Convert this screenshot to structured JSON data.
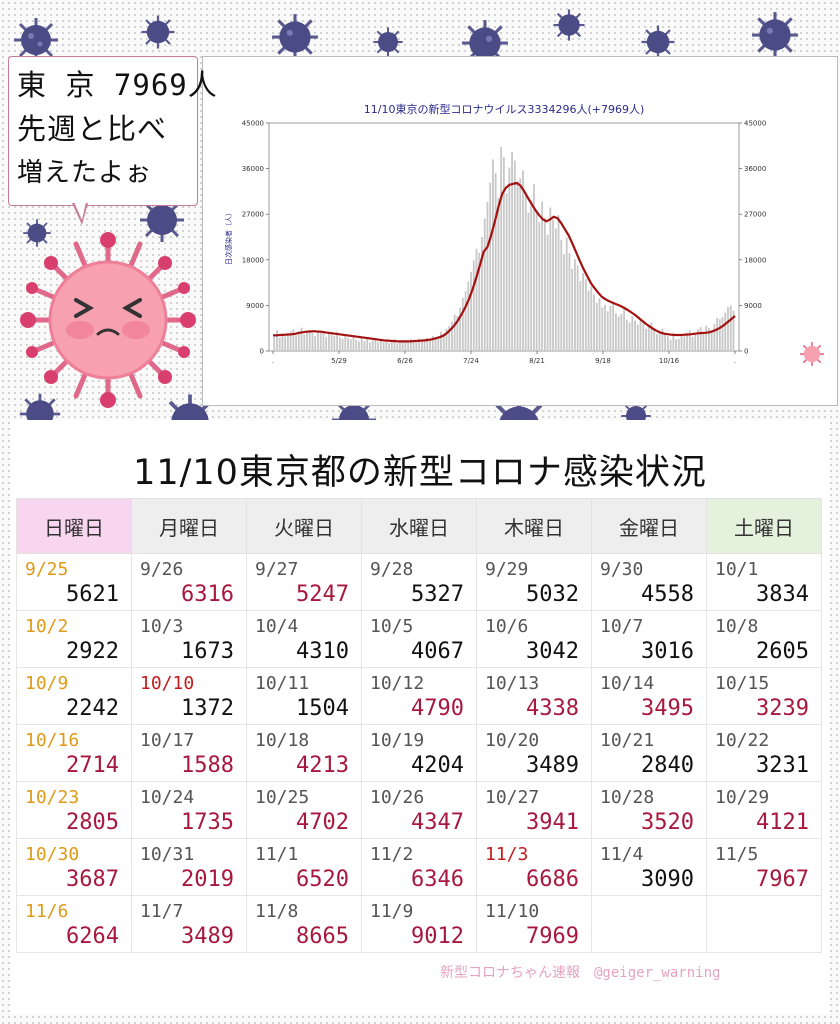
{
  "bubble": {
    "line1": "東 京 7969人",
    "line2": "先週と比べ",
    "line3": "増えたよぉ"
  },
  "chart_data": {
    "type": "bar",
    "title": "11/10東京の新型コロナウイルス3334296人(+7969人)",
    "ylabel": "日次感染者（人）",
    "ylim": [
      0,
      45000
    ],
    "yticks": [
      0,
      9000,
      18000,
      27000,
      36000,
      45000
    ],
    "xticks": [
      ".",
      "5/29",
      "6/26",
      "7/24",
      "8/21",
      "9/18",
      "10/16",
      "."
    ],
    "series": [
      {
        "type": "bar",
        "values": [
          3200,
          4100,
          2600,
          3600,
          2900,
          3400,
          3900,
          4300,
          3100,
          3800,
          4600,
          3300,
          3900,
          4200,
          3500,
          3000,
          3700,
          4000,
          3600,
          2800,
          3500,
          3200,
          2900,
          3800,
          2700,
          2400,
          3100,
          2600,
          2300,
          2900,
          2200,
          1900,
          2600,
          2000,
          2500,
          1700,
          2100,
          2400,
          1800,
          2000,
          1700,
          2200,
          1600,
          1900,
          2300,
          1500,
          1800,
          1700,
          2000,
          1600,
          2300,
          1900,
          1700,
          2400,
          2100,
          2000,
          2600,
          2300,
          3000,
          2500,
          2900,
          3800,
          3300,
          4400,
          4900,
          5800,
          7200,
          6900,
          8600,
          10500,
          11800,
          13700,
          15600,
          17900,
          20200,
          19400,
          22500,
          26100,
          29400,
          33200,
          37800,
          35100,
          30200,
          40300,
          38300,
          31100,
          36200,
          39300,
          37600,
          33400,
          34100,
          35600,
          31300,
          27300,
          29700,
          32900,
          27900,
          25400,
          29500,
          26300,
          22900,
          28300,
          25900,
          24200,
          26800,
          21900,
          19100,
          22400,
          19300,
          16200,
          18100,
          16900,
          13800,
          15400,
          14200,
          11900,
          12800,
          11200,
          9500,
          10400,
          8600,
          9100,
          7800,
          8900,
          9300,
          7400,
          6800,
          7300,
          8500,
          6200,
          5600,
          6900,
          6000,
          5200,
          6200,
          5600,
          4400,
          5100,
          5600,
          4600,
          3300,
          3900,
          4400,
          3500,
          2900,
          2200,
          3600,
          2300,
          2400,
          3300,
          2900,
          3500,
          4100,
          2800,
          3400,
          4300,
          4700,
          3700,
          5000,
          4600,
          3900,
          5300,
          6500,
          6300,
          6700,
          7600,
          8700,
          9000,
          7970
        ]
      },
      {
        "type": "line",
        "values": [
          3100,
          3100,
          3150,
          3200,
          3250,
          3300,
          3400,
          3600,
          3700,
          3800,
          3850,
          3900,
          3850,
          3800,
          3700,
          3600,
          3500,
          3400,
          3300,
          3200,
          3100,
          3000,
          2900,
          2800,
          2700,
          2600,
          2500,
          2400,
          2300,
          2200,
          2100,
          2050,
          2000,
          1950,
          1900,
          1900,
          1900,
          1900,
          1950,
          2000,
          2050,
          2100,
          2200,
          2300,
          2500,
          2700,
          3000,
          3500,
          4200,
          5000,
          6000,
          7200,
          8600,
          10200,
          12200,
          14500,
          17000,
          19600,
          20500,
          22800,
          25500,
          28500,
          31000,
          32200,
          32800,
          33000,
          33200,
          32600,
          31500,
          30200,
          29000,
          27800,
          26800,
          26000,
          25600,
          26000,
          26500,
          26200,
          25200,
          24000,
          22800,
          21200,
          19500,
          17800,
          16200,
          14800,
          13400,
          12400,
          11500,
          10700,
          10200,
          9800,
          9500,
          9200,
          8900,
          8500,
          8100,
          7600,
          7100,
          6500,
          5900,
          5300,
          4800,
          4300,
          3900,
          3600,
          3400,
          3300,
          3200,
          3150,
          3150,
          3200,
          3250,
          3300,
          3400,
          3500,
          3550,
          3600,
          3700,
          3900,
          4200,
          4600,
          5100,
          5700,
          6300,
          6900
        ]
      }
    ]
  },
  "headline": "11/10東京都の新型コロナ感染状況",
  "weekdays": [
    "日曜日",
    "月曜日",
    "火曜日",
    "水曜日",
    "木曜日",
    "金曜日",
    "土曜日"
  ],
  "calendar": [
    [
      [
        "9/25",
        "5621"
      ],
      [
        "9/26",
        "6316"
      ],
      [
        "9/27",
        "5247"
      ],
      [
        "9/28",
        "5327"
      ],
      [
        "9/29",
        "5032"
      ],
      [
        "9/30",
        "4558"
      ],
      [
        "10/1",
        "3834"
      ]
    ],
    [
      [
        "10/2",
        "2922"
      ],
      [
        "10/3",
        "1673"
      ],
      [
        "10/4",
        "4310"
      ],
      [
        "10/5",
        "4067"
      ],
      [
        "10/6",
        "3042"
      ],
      [
        "10/7",
        "3016"
      ],
      [
        "10/8",
        "2605"
      ]
    ],
    [
      [
        "10/9",
        "2242"
      ],
      [
        "10/10",
        "1372"
      ],
      [
        "10/11",
        "1504"
      ],
      [
        "10/12",
        "4790"
      ],
      [
        "10/13",
        "4338"
      ],
      [
        "10/14",
        "3495"
      ],
      [
        "10/15",
        "3239"
      ]
    ],
    [
      [
        "10/16",
        "2714"
      ],
      [
        "10/17",
        "1588"
      ],
      [
        "10/18",
        "4213"
      ],
      [
        "10/19",
        "4204"
      ],
      [
        "10/20",
        "3489"
      ],
      [
        "10/21",
        "2840"
      ],
      [
        "10/22",
        "3231"
      ]
    ],
    [
      [
        "10/23",
        "2805"
      ],
      [
        "10/24",
        "1735"
      ],
      [
        "10/25",
        "4702"
      ],
      [
        "10/26",
        "4347"
      ],
      [
        "10/27",
        "3941"
      ],
      [
        "10/28",
        "3520"
      ],
      [
        "10/29",
        "4121"
      ]
    ],
    [
      [
        "10/30",
        "3687"
      ],
      [
        "10/31",
        "2019"
      ],
      [
        "11/1",
        "6520"
      ],
      [
        "11/2",
        "6346"
      ],
      [
        "11/3",
        "6686"
      ],
      [
        "11/4",
        "3090"
      ],
      [
        "11/5",
        "7967"
      ]
    ],
    [
      [
        "11/6",
        "6264"
      ],
      [
        "11/7",
        "3489"
      ],
      [
        "11/8",
        "8665"
      ],
      [
        "11/9",
        "9012"
      ],
      [
        "11/10",
        "7969"
      ],
      [
        "",
        ""
      ],
      [
        "",
        ""
      ]
    ]
  ],
  "colors": {
    "increase_number": "#a8183e",
    "sunday_date": "#e09a1a",
    "holiday_date": "#c41d1d",
    "line": "#a31111",
    "bar": "#c8c8c8"
  },
  "increased": [
    [
      false,
      true,
      true,
      false,
      false,
      false,
      false
    ],
    [
      false,
      false,
      false,
      false,
      false,
      false,
      false
    ],
    [
      false,
      false,
      false,
      true,
      true,
      true,
      true
    ],
    [
      true,
      true,
      true,
      false,
      false,
      false,
      false
    ],
    [
      true,
      true,
      true,
      true,
      true,
      true,
      true
    ],
    [
      true,
      true,
      true,
      true,
      true,
      false,
      true
    ],
    [
      true,
      true,
      true,
      true,
      true,
      false,
      false
    ]
  ],
  "holiday_dates": [
    "10/10",
    "11/3"
  ],
  "footer": "新型コロナちゃん速報　@geiger_warning"
}
